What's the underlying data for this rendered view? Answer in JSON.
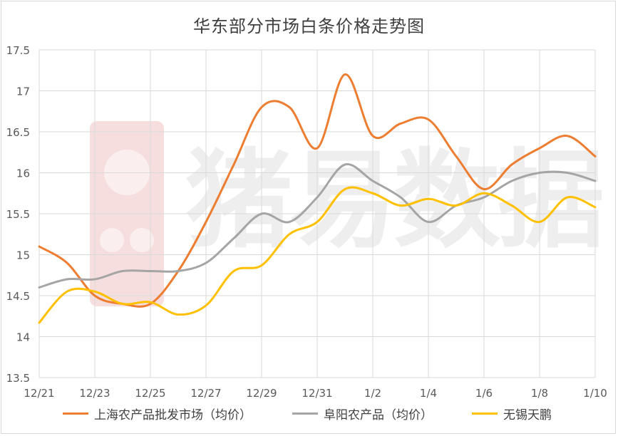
{
  "chart_data": {
    "type": "line",
    "title": "华东部分市场白条价格走势图",
    "x": [
      "12/21",
      "12/22",
      "12/23",
      "12/24",
      "12/25",
      "12/26",
      "12/27",
      "12/28",
      "12/29",
      "12/30",
      "12/31",
      "1/1",
      "1/2",
      "1/3",
      "1/4",
      "1/5",
      "1/6",
      "1/7",
      "1/8",
      "1/9",
      "1/10"
    ],
    "x_tick_labels": [
      "12/21",
      "12/23",
      "12/25",
      "12/27",
      "12/29",
      "12/31",
      "1/2",
      "1/4",
      "1/6",
      "1/8",
      "1/10"
    ],
    "ylim": [
      13.5,
      17.5
    ],
    "y_ticks": [
      "13.5",
      "14",
      "14.5",
      "15",
      "15.5",
      "16",
      "16.5",
      "17",
      "17.5"
    ],
    "grid": "vertical and horizontal",
    "legend": "bottom",
    "series": [
      {
        "name": "上海农产品批发市场（均价）",
        "color": "#ed7d31",
        "values": [
          15.1,
          14.9,
          14.5,
          14.4,
          14.4,
          14.8,
          15.4,
          16.1,
          16.8,
          16.8,
          16.3,
          17.2,
          16.45,
          16.6,
          16.65,
          16.2,
          15.8,
          16.1,
          16.3,
          16.45,
          16.2
        ]
      },
      {
        "name": "阜阳农产品（均价）",
        "color": "#a5a5a5",
        "values": [
          14.6,
          14.7,
          14.7,
          14.8,
          14.8,
          14.8,
          14.9,
          15.2,
          15.5,
          15.4,
          15.7,
          16.1,
          15.9,
          15.7,
          15.4,
          15.6,
          15.7,
          15.9,
          16.0,
          16.0,
          15.9
        ]
      },
      {
        "name": "无锡天鹏",
        "color": "#ffc000",
        "values": [
          14.17,
          14.55,
          14.55,
          14.4,
          14.42,
          14.27,
          14.38,
          14.8,
          14.87,
          15.25,
          15.4,
          15.8,
          15.75,
          15.6,
          15.68,
          15.6,
          15.75,
          15.6,
          15.4,
          15.7,
          15.58
        ]
      }
    ]
  },
  "watermark": {
    "text": "猪易数据"
  }
}
